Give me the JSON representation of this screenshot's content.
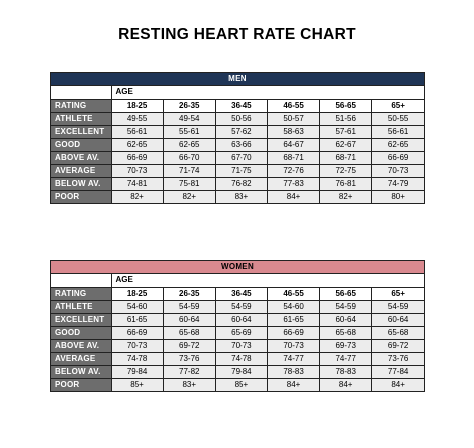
{
  "title": "RESTING HEART RATE CHART",
  "age_header": "AGE",
  "men": {
    "heading": "MEN",
    "rating_label": "RATING",
    "age_ranges": [
      "18-25",
      "26-35",
      "36-45",
      "46-55",
      "56-65",
      "65+"
    ],
    "rows": [
      {
        "label": "ATHLETE",
        "values": [
          "49-55",
          "49-54",
          "50-56",
          "50-57",
          "51-56",
          "50-55"
        ]
      },
      {
        "label": "EXCELLENT",
        "values": [
          "56-61",
          "55-61",
          "57-62",
          "58-63",
          "57-61",
          "56-61"
        ]
      },
      {
        "label": "GOOD",
        "values": [
          "62-65",
          "62-65",
          "63-66",
          "64-67",
          "62-67",
          "62-65"
        ]
      },
      {
        "label": "ABOVE AV.",
        "values": [
          "66-69",
          "66-70",
          "67-70",
          "68-71",
          "68-71",
          "66-69"
        ]
      },
      {
        "label": "AVERAGE",
        "values": [
          "70-73",
          "71-74",
          "71-75",
          "72-76",
          "72-75",
          "70-73"
        ]
      },
      {
        "label": "BELOW AV.",
        "values": [
          "74-81",
          "75-81",
          "76-82",
          "77-83",
          "76-81",
          "74-79"
        ]
      },
      {
        "label": "POOR",
        "values": [
          "82+",
          "82+",
          "83+",
          "84+",
          "82+",
          "80+"
        ]
      }
    ]
  },
  "women": {
    "heading": "WOMEN",
    "rating_label": "RATING",
    "age_ranges": [
      "18-25",
      "26-35",
      "36-45",
      "46-55",
      "56-65",
      "65+"
    ],
    "rows": [
      {
        "label": "ATHLETE",
        "values": [
          "54-60",
          "54-59",
          "54-59",
          "54-60",
          "54-59",
          "54-59"
        ]
      },
      {
        "label": "EXCELLENT",
        "values": [
          "61-65",
          "60-64",
          "60-64",
          "61-65",
          "60-64",
          "60-64"
        ]
      },
      {
        "label": "GOOD",
        "values": [
          "66-69",
          "65-68",
          "65-69",
          "66-69",
          "65-68",
          "65-68"
        ]
      },
      {
        "label": "ABOVE AV.",
        "values": [
          "70-73",
          "69-72",
          "70-73",
          "70-73",
          "69-73",
          "69-72"
        ]
      },
      {
        "label": "AVERAGE",
        "values": [
          "74-78",
          "73-76",
          "74-78",
          "74-77",
          "74-77",
          "73-76"
        ]
      },
      {
        "label": "BELOW AV.",
        "values": [
          "79-84",
          "77-82",
          "79-84",
          "78-83",
          "78-83",
          "77-84"
        ]
      },
      {
        "label": "POOR",
        "values": [
          "85+",
          "83+",
          "85+",
          "84+",
          "84+",
          "84+"
        ]
      }
    ]
  },
  "colors": {
    "men_band": "#1f3556",
    "women_band": "#d9898f",
    "label_cell": "#6d6d6d",
    "value_cell": "#ececec"
  }
}
